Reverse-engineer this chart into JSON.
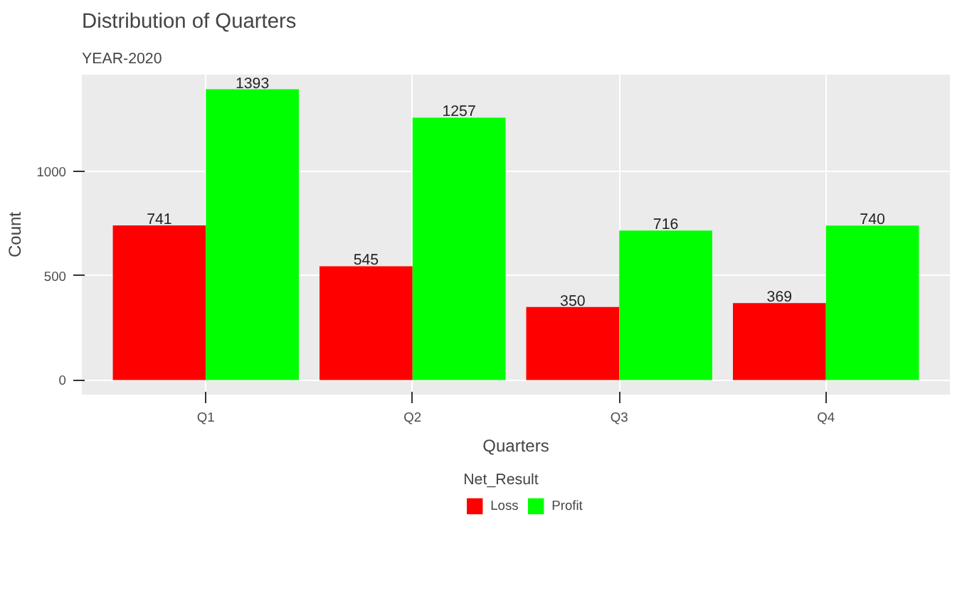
{
  "chart_data": {
    "type": "bar",
    "title": "Distribution of Quarters",
    "subtitle": "YEAR-2020",
    "xlabel": "Quarters",
    "ylabel": "Count",
    "legend_title": "Net_Result",
    "categories": [
      "Q1",
      "Q2",
      "Q3",
      "Q4"
    ],
    "series": [
      {
        "name": "Loss",
        "color": "#ff0000",
        "values": [
          741,
          545,
          350,
          369
        ]
      },
      {
        "name": "Profit",
        "color": "#00ff00",
        "values": [
          1393,
          1257,
          716,
          740
        ]
      }
    ],
    "ylim": [
      -70,
      1463
    ],
    "yticks": [
      0,
      500,
      1000
    ],
    "grid": true,
    "legend": "bottom",
    "data_labels": true
  }
}
